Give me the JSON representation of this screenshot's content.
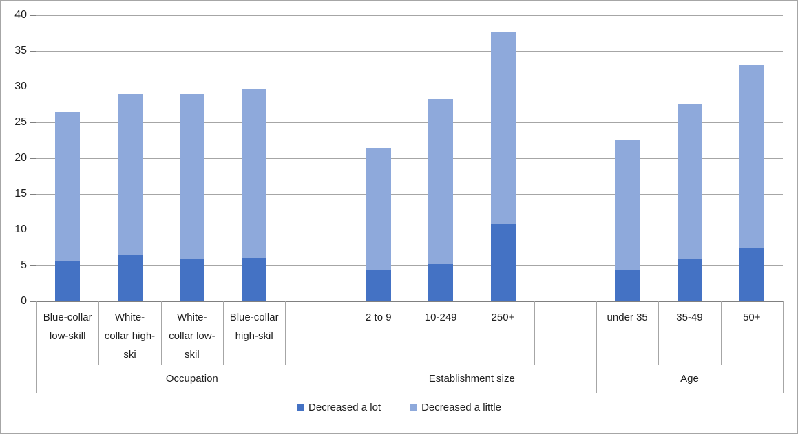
{
  "colors": {
    "decreased_a_lot": "#4472C4",
    "decreased_a_little": "#8EA9DB",
    "gridline": "#A6A6A6",
    "axis_line": "#808080",
    "text": "#1F1F1F",
    "chart_border": "#A6A6A6"
  },
  "chart_data": {
    "type": "bar",
    "stacked": true,
    "title": "",
    "xlabel": "",
    "ylabel": "",
    "ylim": [
      0,
      40
    ],
    "ytick_step": 5,
    "ytick_labels": [
      "0",
      "5",
      "10",
      "15",
      "20",
      "25",
      "30",
      "35",
      "40"
    ],
    "grid": true,
    "legend_position": "bottom",
    "categories": [
      "Blue-collar low-skill",
      "White-collar high-ski",
      "White-collar low-skil",
      "Blue-collar high-skil",
      "2 to 9",
      "10-249",
      "250+",
      "under 35",
      "35-49",
      "50+"
    ],
    "groups": [
      {
        "label": "Occupation",
        "category_indexes": [
          0,
          1,
          2,
          3
        ],
        "slots": 5
      },
      {
        "label": "Establishment size",
        "category_indexes": [
          4,
          5,
          6
        ],
        "slots": 4
      },
      {
        "label": "Age",
        "category_indexes": [
          7,
          8,
          9
        ],
        "slots": 3
      }
    ],
    "series": [
      {
        "name": "Decreased a lot",
        "color": "#4472C4",
        "values": [
          5.7,
          6.4,
          5.9,
          6.1,
          4.3,
          5.2,
          10.8,
          4.4,
          5.9,
          7.4
        ]
      },
      {
        "name": "Decreased a little",
        "color": "#8EA9DB",
        "values": [
          20.7,
          22.5,
          23.1,
          23.6,
          17.1,
          23.1,
          26.9,
          18.2,
          21.7,
          25.7
        ]
      }
    ],
    "stacked_totals": [
      26.4,
      28.9,
      29.0,
      29.7,
      21.4,
      28.3,
      37.7,
      22.6,
      27.6,
      33.1
    ]
  }
}
